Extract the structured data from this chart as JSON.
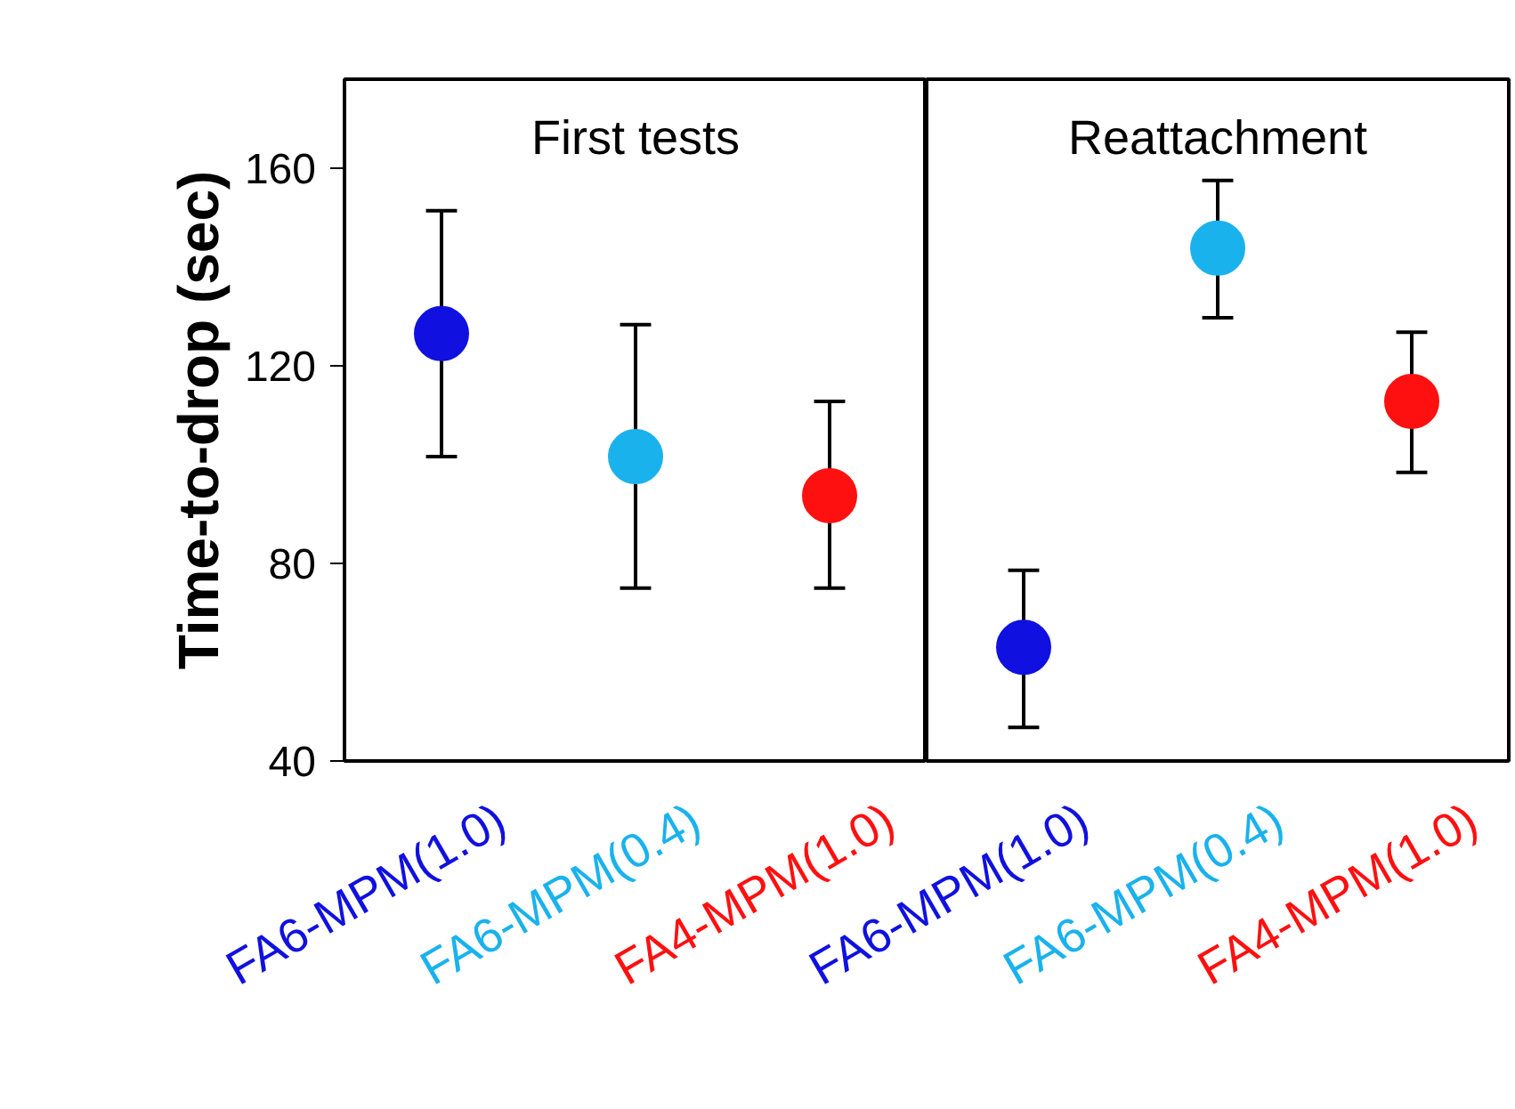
{
  "chart_data": [
    {
      "type": "scatter",
      "ylabel": "Time-to-drop (sec)",
      "categories": [
        "FA6-MPM(1.0)",
        "FA6-MPM(0.4)",
        "FA4-MPM(1.0)"
      ],
      "values": [
        126.5,
        101.6,
        93.7
      ],
      "errors": [
        [
          101.6,
          151.4
        ],
        [
          75,
          128.3
        ],
        [
          75,
          112.8
        ]
      ],
      "colors": [
        "#1010e0",
        "#1ab2ec",
        "#ff1010"
      ],
      "marker": "circle",
      "ylim": [
        40,
        178
      ],
      "yticks": [
        40,
        80,
        120,
        160
      ],
      "annotations": [
        "First tests"
      ]
    },
    {
      "type": "scatter",
      "categories": [
        "FA6-MPM(1.0)",
        "FA6-MPM(0.4)",
        "FA4-MPM(1.0)"
      ],
      "values": [
        63,
        143.8,
        112.8
      ],
      "errors": [
        [
          46.8,
          78.6
        ],
        [
          129.7,
          157.5
        ],
        [
          98.4,
          126.8
        ]
      ],
      "colors": [
        "#1010e0",
        "#1ab2ec",
        "#ff1010"
      ],
      "marker": "circle",
      "ylim": [
        40,
        178
      ],
      "yticks": [
        40,
        80,
        120,
        160
      ],
      "tick_labels": "x",
      "annotations": [
        "Reattachment"
      ]
    }
  ]
}
